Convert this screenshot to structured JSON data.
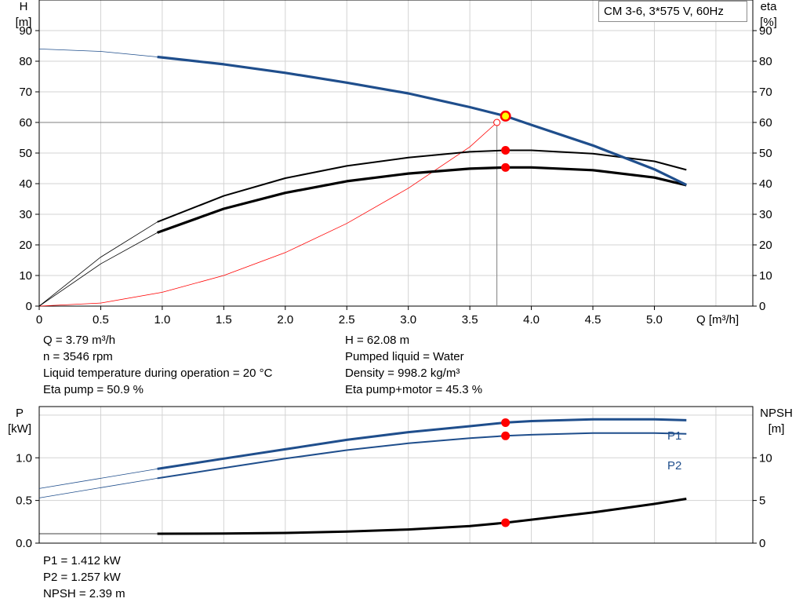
{
  "title": "CM 3-6, 3*575 V, 60Hz",
  "upper_axes": {
    "y_left_label": "H",
    "y_left_unit": "[m]",
    "y_right_label": "eta",
    "y_right_unit": "[%]",
    "x_label": "Q [m³/h]"
  },
  "lower_axes": {
    "y_left_label": "P",
    "y_left_unit": "[kW]",
    "y_right_label": "NPSH",
    "y_right_unit": "[m]"
  },
  "info_upper": {
    "q": "Q = 3.79 m³/h",
    "n": "n = 3546 rpm",
    "temp": "Liquid temperature during operation = 20 °C",
    "eta_pump": "Eta pump = 50.9 %",
    "h": "H = 62.08 m",
    "liquid": "Pumped liquid = Water",
    "density": "Density = 998.2 kg/m³",
    "eta_pm": "Eta pump+motor = 45.3 %"
  },
  "info_lower": {
    "p1": "P1 = 1.412 kW",
    "p2": "P2 = 1.257 kW",
    "npsh": "NPSH = 2.39 m"
  },
  "colors": {
    "head_curve": "#1f4e8c",
    "power_curve": "#1f4e8c",
    "efficiency_curve": "#000000",
    "system_curve": "#ff0000",
    "duty_point": "#ff0000",
    "duty_point_highlight": "#ffff00",
    "grid": "#d3d3d3"
  },
  "chart_data": [
    {
      "type": "line",
      "xlim": [
        0,
        5.8
      ],
      "ylim_left": [
        0,
        100
      ],
      "ylim_right": [
        0,
        100
      ],
      "x_ticks": [
        "0",
        "0.5",
        "1.0",
        "1.5",
        "2.0",
        "2.5",
        "3.0",
        "3.5",
        "4.0",
        "4.5",
        "5.0"
      ],
      "y_ticks": [
        "0",
        "10",
        "20",
        "30",
        "40",
        "50",
        "60",
        "70",
        "80",
        "90"
      ],
      "grid": true,
      "operating_range": [
        0.96,
        5.26
      ],
      "series": [
        {
          "key": "head",
          "axis": "left",
          "x": [
            0,
            0.5,
            0.96,
            1.5,
            2.0,
            2.5,
            3.0,
            3.5,
            3.79,
            4.0,
            4.5,
            5.0,
            5.26
          ],
          "y": [
            84.0,
            83.2,
            81.4,
            79.0,
            76.2,
            73.0,
            69.5,
            65.0,
            62.08,
            59.2,
            52.5,
            44.7,
            39.6
          ]
        },
        {
          "key": "eta_pump",
          "axis": "right",
          "x": [
            0,
            0.5,
            0.96,
            1.5,
            2.0,
            2.5,
            3.0,
            3.5,
            3.79,
            4.0,
            4.5,
            5.0,
            5.26
          ],
          "y": [
            0,
            16.0,
            27.5,
            36.0,
            41.8,
            45.8,
            48.5,
            50.4,
            50.9,
            50.9,
            49.8,
            47.3,
            44.5
          ]
        },
        {
          "key": "eta_pump_motor",
          "axis": "right",
          "x": [
            0,
            0.5,
            0.96,
            1.5,
            2.0,
            2.5,
            3.0,
            3.5,
            3.79,
            4.0,
            4.5,
            5.0,
            5.26
          ],
          "y": [
            0,
            13.8,
            24.0,
            31.8,
            37.0,
            40.8,
            43.3,
            44.9,
            45.3,
            45.3,
            44.4,
            42.0,
            39.5
          ]
        },
        {
          "key": "system",
          "axis": "left",
          "x": [
            0,
            0.5,
            1.0,
            1.5,
            2.0,
            2.5,
            3.0,
            3.5,
            3.72
          ],
          "y": [
            0,
            1.0,
            4.5,
            10.0,
            17.5,
            27.0,
            38.5,
            52.0,
            60.0
          ]
        }
      ],
      "duty_points": [
        {
          "x": 3.79,
          "y": 62.08,
          "axis": "left",
          "highlight": true
        },
        {
          "x": 3.79,
          "y": 50.9,
          "axis": "right"
        },
        {
          "x": 3.79,
          "y": 45.3,
          "axis": "right"
        }
      ],
      "reference_point": {
        "x": 3.72,
        "y": 60
      }
    },
    {
      "type": "line",
      "xlim": [
        0,
        5.8
      ],
      "ylim_left": [
        0,
        1.6
      ],
      "ylim_right": [
        0,
        16
      ],
      "y_ticks_left": [
        "0.0",
        "0.5",
        "1.0"
      ],
      "y_ticks_right": [
        "0",
        "5",
        "10"
      ],
      "grid": true,
      "operating_range": [
        0.96,
        5.26
      ],
      "series": [
        {
          "key": "p1",
          "name": "P1",
          "axis": "left",
          "x": [
            0,
            0.5,
            0.96,
            1.5,
            2.0,
            2.5,
            3.0,
            3.5,
            3.79,
            4.0,
            4.5,
            5.0,
            5.26
          ],
          "y": [
            0.64,
            0.76,
            0.87,
            0.99,
            1.1,
            1.21,
            1.3,
            1.37,
            1.412,
            1.43,
            1.45,
            1.45,
            1.44
          ]
        },
        {
          "key": "p2",
          "name": "P2",
          "axis": "left",
          "x": [
            0,
            0.5,
            0.96,
            1.5,
            2.0,
            2.5,
            3.0,
            3.5,
            3.79,
            4.0,
            4.5,
            5.0,
            5.26
          ],
          "y": [
            0.53,
            0.65,
            0.76,
            0.88,
            0.99,
            1.09,
            1.17,
            1.23,
            1.257,
            1.27,
            1.29,
            1.29,
            1.28
          ]
        },
        {
          "key": "npsh",
          "axis": "right",
          "x": [
            0,
            0.5,
            0.96,
            1.5,
            2.0,
            2.5,
            3.0,
            3.5,
            3.79,
            4.0,
            4.5,
            5.0,
            5.26
          ],
          "y": [
            1.1,
            1.1,
            1.1,
            1.12,
            1.2,
            1.35,
            1.6,
            2.0,
            2.39,
            2.75,
            3.6,
            4.6,
            5.2
          ]
        }
      ],
      "duty_points": [
        {
          "x": 3.79,
          "y": 1.412,
          "axis": "left"
        },
        {
          "x": 3.79,
          "y": 1.257,
          "axis": "left"
        },
        {
          "x": 3.79,
          "y": 2.39,
          "axis": "right"
        }
      ]
    }
  ]
}
